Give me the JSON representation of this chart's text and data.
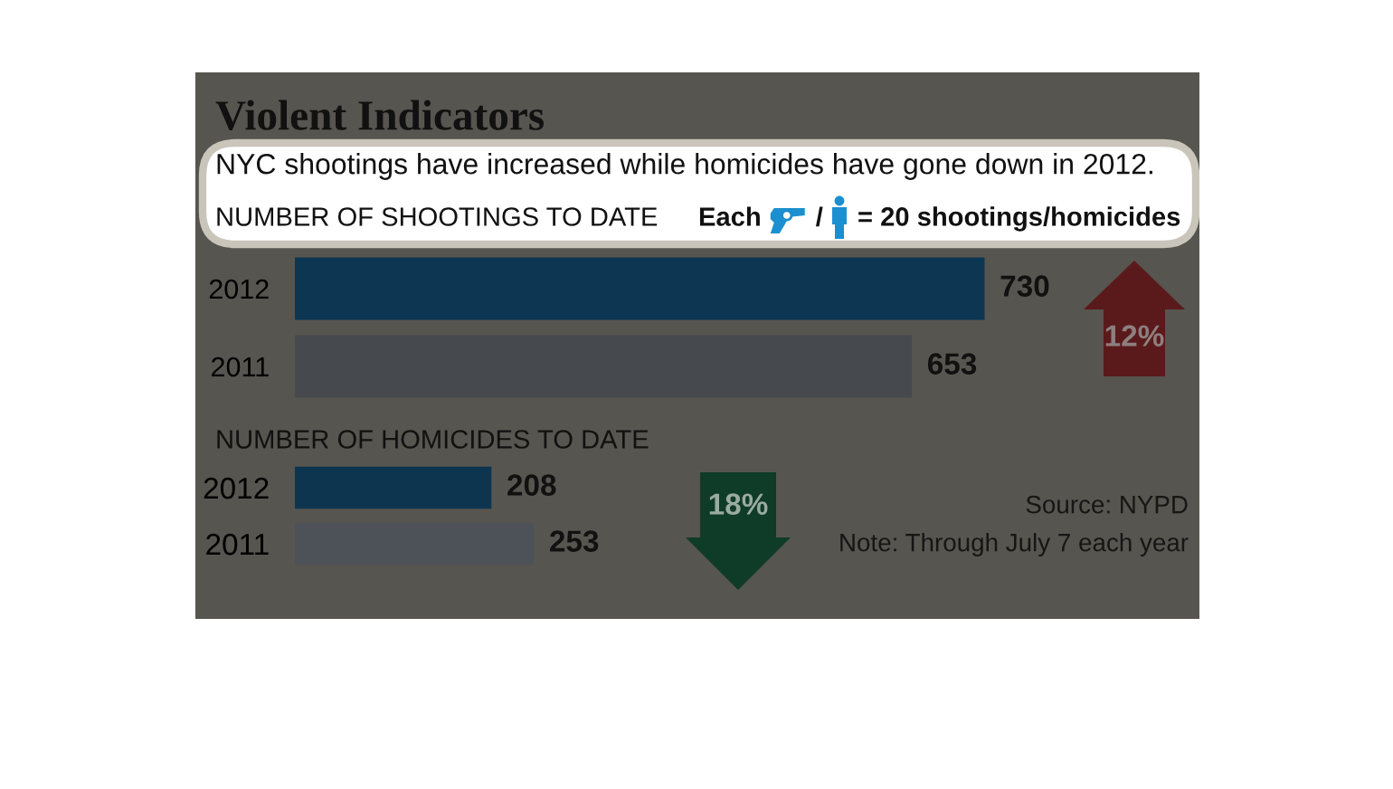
{
  "chart_data": [
    {
      "type": "other",
      "title": "Violent Indicators",
      "subtitle": "NYC shootings have increased while homicides have gone down in 2012.",
      "annotations": [
        "Each",
        "/",
        "= 20 shootings/homicides"
      ]
    },
    {
      "type": "bar",
      "orientation": "horizontal",
      "title": "NUMBER OF SHOOTINGS TO DATE",
      "categories": [
        "2012",
        "2011"
      ],
      "values": [
        730,
        653
      ],
      "colors": [
        "#0c3652",
        "#46494d"
      ],
      "data_labels": true,
      "tick_labels": "y",
      "annotations": [
        "12%"
      ]
    },
    {
      "type": "bar",
      "orientation": "horizontal",
      "title": "NUMBER OF HOMICIDES TO DATE",
      "categories": [
        "2012",
        "2011"
      ],
      "values": [
        208,
        253
      ],
      "colors": [
        "#0d3550",
        "#4d5259"
      ],
      "data_labels": true,
      "tick_labels": "y",
      "annotations": [
        "18%",
        "Source: NYPD",
        "Note: Through July 7 each year"
      ]
    }
  ]
}
